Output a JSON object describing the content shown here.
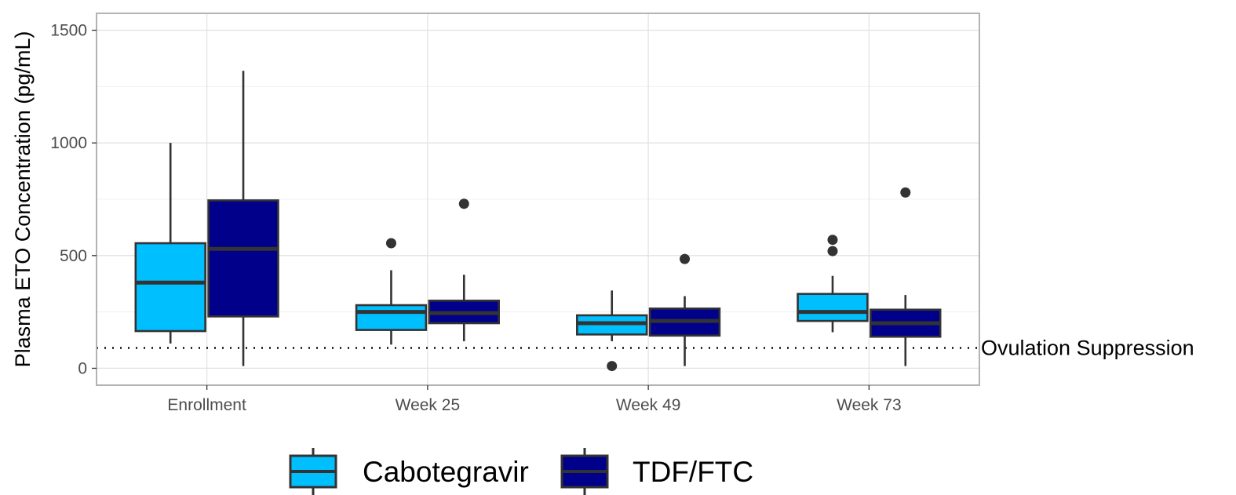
{
  "chart_data": {
    "type": "boxplot",
    "ylabel": "Plasma ETO Concentration (pg/mL)",
    "xlabel": "",
    "categories": [
      "Enrollment",
      "Week 25",
      "Week 49",
      "Week 73"
    ],
    "ylim": [
      -75,
      1575
    ],
    "yticks": [
      0,
      500,
      1000,
      1500
    ],
    "grid": true,
    "legend_position": "bottom",
    "reference_line": {
      "value": 90,
      "label": "Ovulation Suppression",
      "style": "dotted"
    },
    "series": [
      {
        "name": "Cabotegravir",
        "color": "#00BFFF",
        "boxes": [
          {
            "category": "Enrollment",
            "whisker_low": 110,
            "q1": 165,
            "median": 380,
            "q3": 555,
            "whisker_high": 1000,
            "outliers": []
          },
          {
            "category": "Week 25",
            "whisker_low": 105,
            "q1": 170,
            "median": 250,
            "q3": 280,
            "whisker_high": 435,
            "outliers": [
              555
            ]
          },
          {
            "category": "Week 49",
            "whisker_low": 120,
            "q1": 150,
            "median": 200,
            "q3": 235,
            "whisker_high": 345,
            "outliers": [
              10
            ]
          },
          {
            "category": "Week 73",
            "whisker_low": 160,
            "q1": 210,
            "median": 250,
            "q3": 330,
            "whisker_high": 410,
            "outliers": [
              520,
              570
            ]
          }
        ]
      },
      {
        "name": "TDF/FTC",
        "color": "#00008B",
        "boxes": [
          {
            "category": "Enrollment",
            "whisker_low": 10,
            "q1": 230,
            "median": 530,
            "q3": 745,
            "whisker_high": 1320,
            "outliers": []
          },
          {
            "category": "Week 25",
            "whisker_low": 120,
            "q1": 200,
            "median": 245,
            "q3": 300,
            "whisker_high": 415,
            "outliers": [
              730
            ]
          },
          {
            "category": "Week 49",
            "whisker_low": 10,
            "q1": 145,
            "median": 210,
            "q3": 265,
            "whisker_high": 320,
            "outliers": [
              485
            ]
          },
          {
            "category": "Week 73",
            "whisker_low": 10,
            "q1": 140,
            "median": 200,
            "q3": 260,
            "whisker_high": 325,
            "outliers": [
              780
            ]
          }
        ]
      }
    ]
  }
}
